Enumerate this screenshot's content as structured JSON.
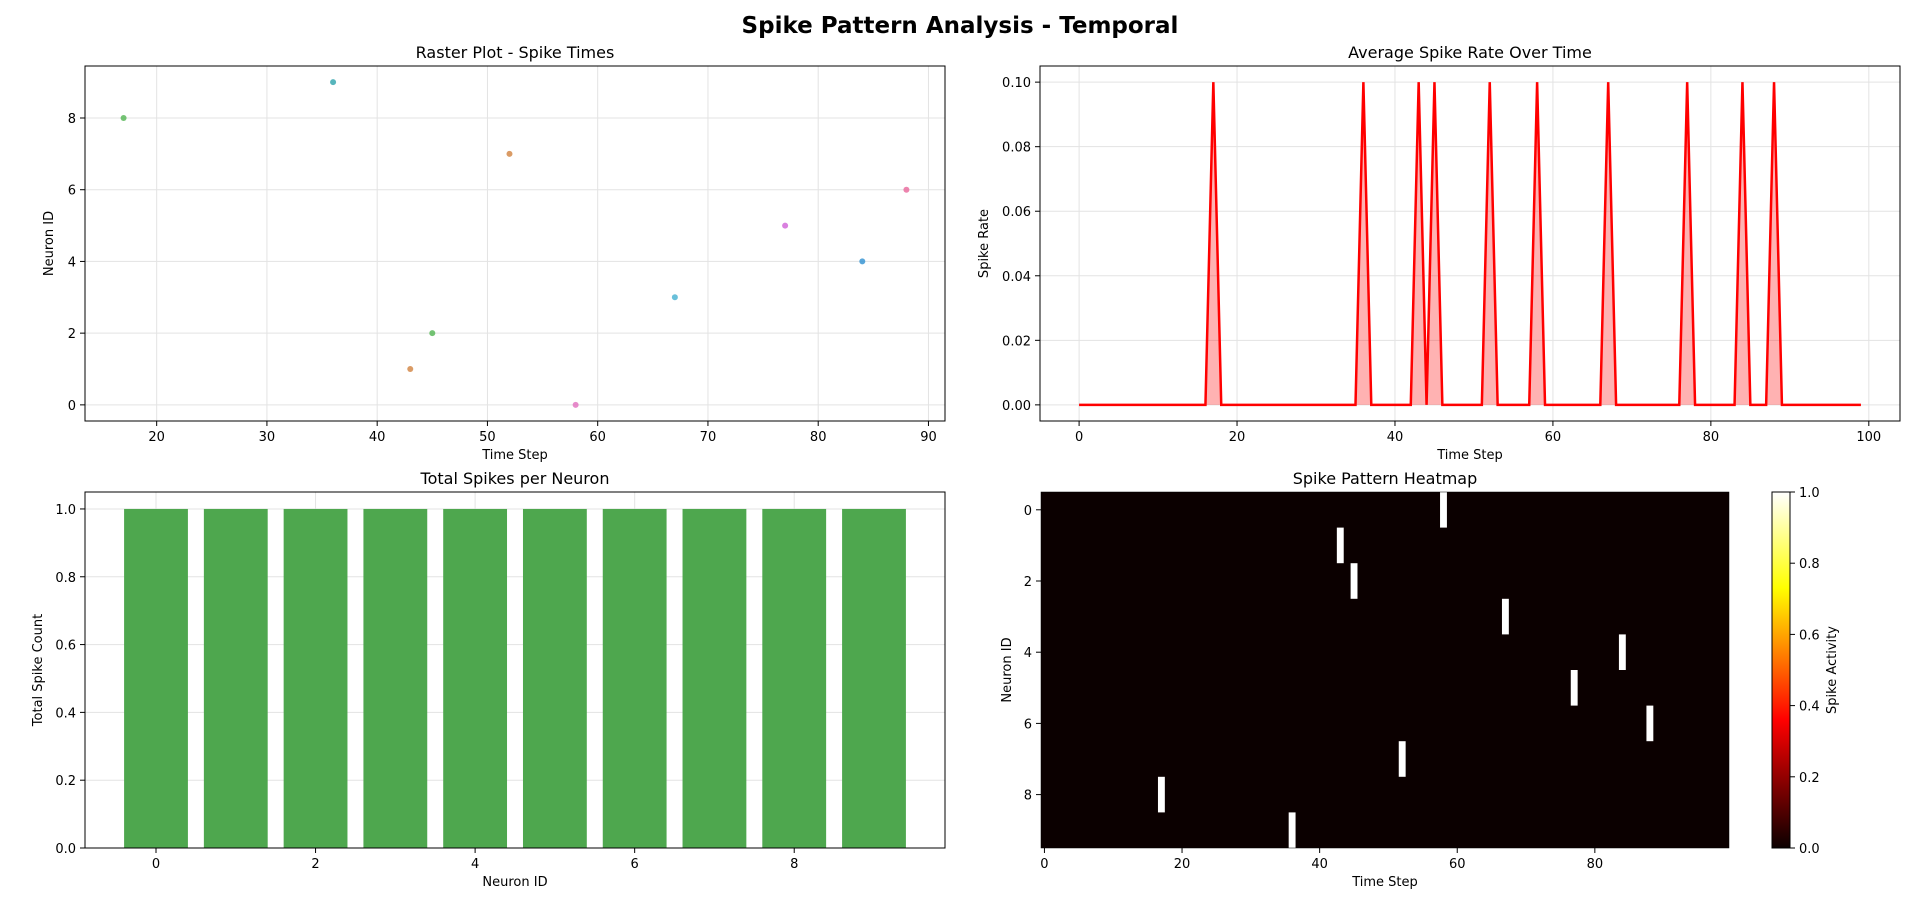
{
  "suptitle": "Spike Pattern Analysis - Temporal",
  "chart_data": [
    {
      "type": "scatter",
      "title": "Raster Plot - Spike Times",
      "xlabel": "Time Step",
      "ylabel": "Neuron ID",
      "xlim": [
        13.5,
        91.5
      ],
      "ylim": [
        -0.45,
        9.45
      ],
      "xticks": [
        20,
        30,
        40,
        50,
        60,
        70,
        80,
        90
      ],
      "yticks": [
        0,
        2,
        4,
        6,
        8
      ],
      "grid": true,
      "points": [
        {
          "x": 58,
          "y": 0,
          "color": "#e377c2"
        },
        {
          "x": 43,
          "y": 1,
          "color": "#d4894a"
        },
        {
          "x": 45,
          "y": 2,
          "color": "#5cb85c"
        },
        {
          "x": 67,
          "y": 3,
          "color": "#4fb5d3"
        },
        {
          "x": 84,
          "y": 4,
          "color": "#3b97d3"
        },
        {
          "x": 77,
          "y": 5,
          "color": "#d26ad9"
        },
        {
          "x": 88,
          "y": 6,
          "color": "#ea6fa0"
        },
        {
          "x": 52,
          "y": 7,
          "color": "#d4894a"
        },
        {
          "x": 17,
          "y": 8,
          "color": "#5cb85c"
        },
        {
          "x": 36,
          "y": 9,
          "color": "#3aa8b0"
        }
      ]
    },
    {
      "type": "area",
      "title": "Average Spike Rate Over Time",
      "xlabel": "Time Step",
      "ylabel": "Spike Rate",
      "xlim": [
        -4.95,
        103.95
      ],
      "ylim": [
        -0.005,
        0.105
      ],
      "xticks": [
        0,
        20,
        40,
        60,
        80,
        100
      ],
      "yticks": [
        0.0,
        0.02,
        0.04,
        0.06,
        0.08,
        0.1
      ],
      "grid": true,
      "line_color": "#ff0000",
      "x_range": [
        0,
        99
      ],
      "spike_times": [
        17,
        36,
        43,
        45,
        52,
        58,
        67,
        77,
        84,
        88
      ],
      "peak_value": 0.1
    },
    {
      "type": "bar",
      "title": "Total Spikes per Neuron",
      "xlabel": "Neuron ID",
      "ylabel": "Total Spike Count",
      "categories": [
        0,
        1,
        2,
        3,
        4,
        5,
        6,
        7,
        8,
        9
      ],
      "values": [
        1,
        1,
        1,
        1,
        1,
        1,
        1,
        1,
        1,
        1
      ],
      "xlim": [
        -0.89,
        9.89
      ],
      "ylim": [
        0,
        1.05
      ],
      "xticks": [
        0,
        2,
        4,
        6,
        8
      ],
      "yticks": [
        0.0,
        0.2,
        0.4,
        0.6,
        0.8,
        1.0
      ],
      "bar_color": "#4ea74e",
      "grid": true
    },
    {
      "type": "heatmap",
      "title": "Spike Pattern Heatmap",
      "xlabel": "Time Step",
      "ylabel": "Neuron ID",
      "xticks": [
        0,
        20,
        40,
        60,
        80
      ],
      "yticks": [
        0,
        2,
        4,
        6,
        8
      ],
      "n_time": 100,
      "n_neurons": 10,
      "spikes": [
        [
          0,
          58
        ],
        [
          1,
          43
        ],
        [
          2,
          45
        ],
        [
          3,
          67
        ],
        [
          4,
          84
        ],
        [
          5,
          77
        ],
        [
          6,
          88
        ],
        [
          7,
          52
        ],
        [
          8,
          17
        ],
        [
          9,
          36
        ]
      ],
      "colormap": "hot",
      "colorbar_label": "Spike Activity",
      "colorbar_ticks": [
        0.0,
        0.2,
        0.4,
        0.6,
        0.8,
        1.0
      ],
      "colorbar_range": [
        0,
        1
      ]
    }
  ]
}
